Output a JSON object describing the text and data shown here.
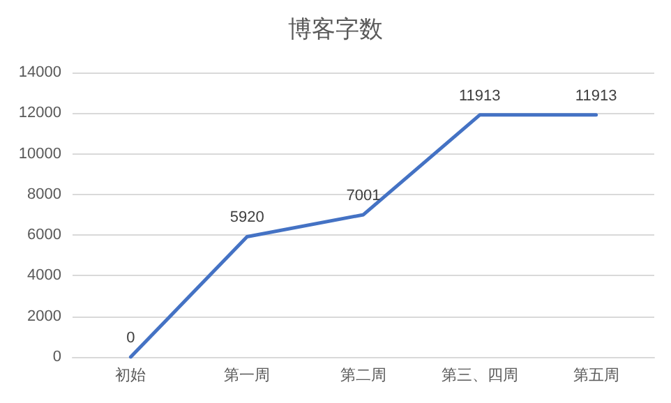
{
  "chart_data": {
    "type": "line",
    "title": "博客字数",
    "categories": [
      "初始",
      "第一周",
      "第二周",
      "第三、四周",
      "第五周"
    ],
    "values": [
      0,
      5920,
      7001,
      11913,
      11913
    ],
    "color": "#4472c4",
    "ylim": [
      0,
      14000
    ],
    "yticks": [
      0,
      2000,
      4000,
      6000,
      8000,
      10000,
      12000,
      14000
    ],
    "grid": "y",
    "data_labels": true,
    "marker": "none",
    "line_style": "solid"
  }
}
